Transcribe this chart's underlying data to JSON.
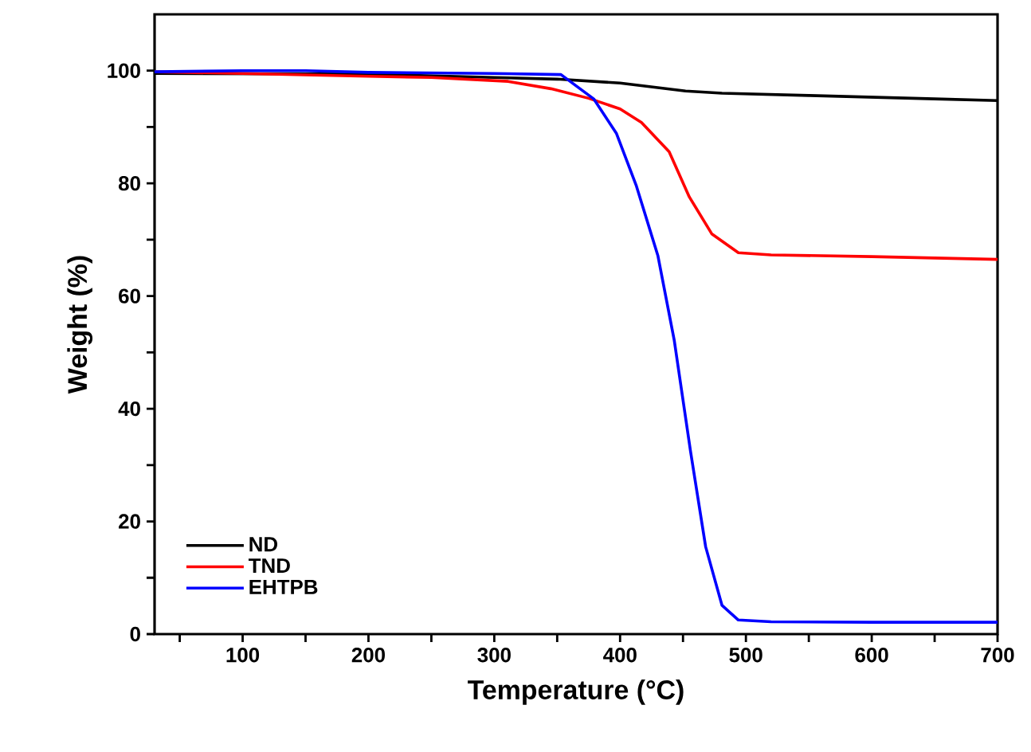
{
  "chart_data": {
    "type": "line",
    "xlabel": "Temperature (°C)",
    "ylabel": "Weight (%)",
    "xlim": [
      30,
      700
    ],
    "ylim": [
      0,
      110
    ],
    "xticks": [
      {
        "value": 50,
        "label": null
      },
      100,
      {
        "value": 150,
        "label": null
      },
      200,
      {
        "value": 250,
        "label": null
      },
      300,
      {
        "value": 350,
        "label": null
      },
      400,
      {
        "value": 450,
        "label": null
      },
      500,
      {
        "value": 550,
        "label": null
      },
      600,
      {
        "value": 650,
        "label": null
      },
      700
    ],
    "yticks": [
      0,
      {
        "value": 10,
        "label": null
      },
      20,
      {
        "value": 30,
        "label": null
      },
      40,
      {
        "value": 50,
        "label": null
      },
      60,
      {
        "value": 70,
        "label": null
      },
      80,
      {
        "value": 90,
        "label": null
      },
      100
    ],
    "legend": "bottom left",
    "grid": false,
    "marker": "none",
    "line_style": "solid",
    "series": [
      {
        "name": "ND",
        "color": "#000000",
        "x": [
          30,
          200,
          300,
          350,
          400,
          452,
          481,
          550,
          600,
          650,
          700
        ],
        "values": [
          99.5,
          99.4,
          98.8,
          98.5,
          97.8,
          96.4,
          96.0,
          95.6,
          95.3,
          95.0,
          94.7
        ]
      },
      {
        "name": "TND",
        "color": "#ff0000",
        "x": [
          30,
          100,
          200,
          250,
          311,
          345,
          375,
          400,
          417,
          439,
          455,
          473,
          494,
          520,
          600,
          700
        ],
        "values": [
          99.8,
          99.5,
          99.0,
          98.8,
          98.1,
          96.8,
          95.1,
          93.2,
          90.8,
          85.6,
          77.6,
          71.0,
          67.7,
          67.3,
          67.0,
          66.5
        ]
      },
      {
        "name": "EHTPB",
        "color": "#0000ff",
        "x": [
          30,
          100,
          150,
          200,
          300,
          353,
          379,
          397,
          413,
          430,
          443,
          456,
          468,
          481,
          494,
          520,
          600,
          700
        ],
        "values": [
          99.8,
          100.0,
          100.0,
          99.7,
          99.5,
          99.3,
          95.0,
          88.9,
          79.5,
          67.2,
          52.2,
          32.4,
          15.5,
          5.1,
          2.5,
          2.2,
          2.1,
          2.1
        ]
      }
    ]
  }
}
